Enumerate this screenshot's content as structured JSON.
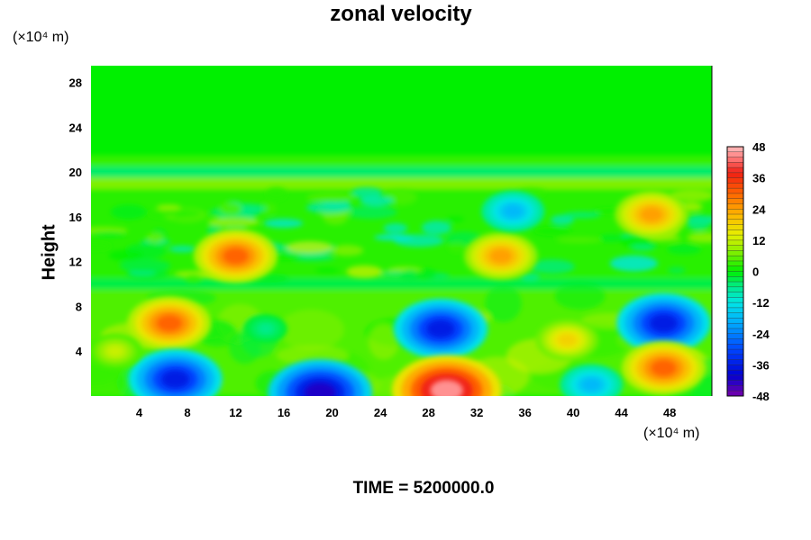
{
  "chart_data": {
    "type": "heatmap",
    "title": "zonal velocity",
    "ylabel": "Height",
    "xlabel": "",
    "y_unit": "(×10⁴ m)",
    "x_unit": "(×10⁴ m)",
    "footer": "TIME = 5200000.0",
    "xlim": [
      0,
      51.5
    ],
    "ylim": [
      0,
      29.5
    ],
    "x_ticks": [
      4,
      8,
      12,
      16,
      20,
      24,
      28,
      32,
      36,
      40,
      44,
      48
    ],
    "y_ticks": [
      4,
      8,
      12,
      16,
      20,
      24,
      28
    ],
    "colorbar": {
      "min": -48,
      "max": 48,
      "ticks": [
        48,
        36,
        24,
        12,
        0,
        -12,
        -24,
        -36,
        -48
      ]
    },
    "features": [
      {
        "x": 6.5,
        "y": 6.5,
        "value": 30
      },
      {
        "x": 29,
        "y": 6.0,
        "value": -36
      },
      {
        "x": 47.5,
        "y": 6.5,
        "value": -36
      },
      {
        "x": 7.0,
        "y": 1.5,
        "value": -36
      },
      {
        "x": 19.0,
        "y": 0.3,
        "value": -42
      },
      {
        "x": 29.5,
        "y": 0.5,
        "value": 45
      },
      {
        "x": 47.5,
        "y": 2.5,
        "value": 30
      },
      {
        "x": 12.0,
        "y": 12.5,
        "value": 30
      },
      {
        "x": 34.0,
        "y": 12.5,
        "value": 24
      },
      {
        "x": 46.5,
        "y": 16.2,
        "value": 24
      },
      {
        "x": 35.0,
        "y": 16.5,
        "value": -18
      },
      {
        "x": 39.5,
        "y": 5.0,
        "value": 18
      },
      {
        "x": 2.0,
        "y": 4.0,
        "value": 12
      },
      {
        "x": 14.5,
        "y": 6.0,
        "value": -6
      },
      {
        "x": 41.5,
        "y": 1.0,
        "value": -18
      }
    ]
  }
}
